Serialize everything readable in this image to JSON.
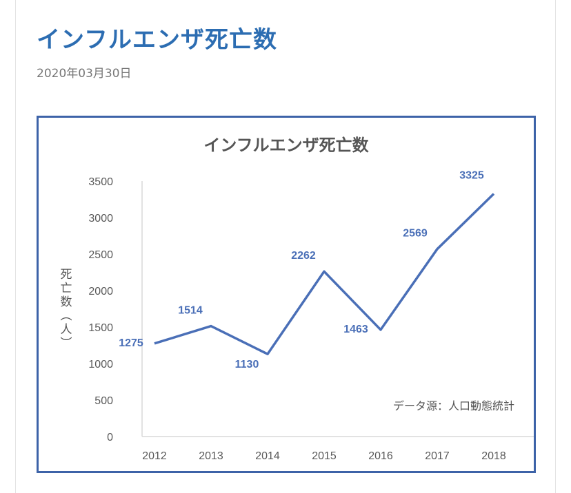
{
  "post": {
    "title": "インフルエンザ死亡数",
    "date": "2020年03月30日"
  },
  "chart_data": {
    "type": "line",
    "title": "インフルエンザ死亡数",
    "ylabel": "死亡数（人）",
    "xlabel": "",
    "x": [
      "2012",
      "2013",
      "2014",
      "2015",
      "2016",
      "2017",
      "2018"
    ],
    "series": [
      {
        "values": [
          1275,
          1514,
          1130,
          2262,
          1463,
          2569,
          3325
        ]
      }
    ],
    "data_labels": [
      "1275",
      "1514",
      "1130",
      "2262",
      "1463",
      "2569",
      "3325"
    ],
    "yticks": [
      "0",
      "500",
      "1000",
      "1500",
      "2000",
      "2500",
      "3000",
      "3500"
    ],
    "ylim": [
      0,
      3500
    ],
    "grid": false,
    "annotation": "データ源：人口動態統計",
    "colors": {
      "line": "#4a6fb7",
      "labels": "#4a6fb7",
      "border": "#3d63a8"
    }
  }
}
